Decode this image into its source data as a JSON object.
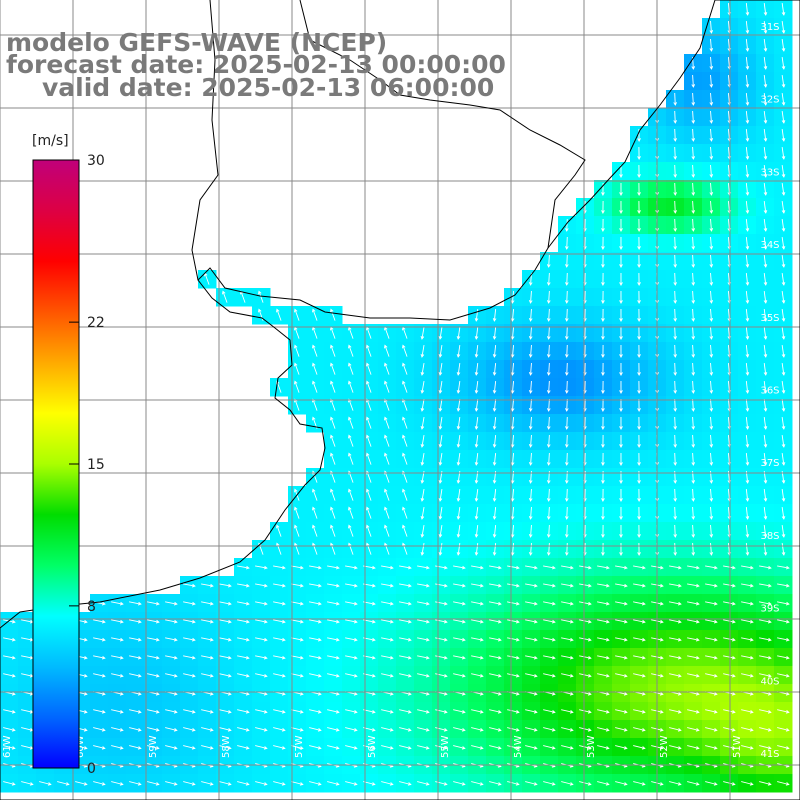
{
  "title": {
    "model": "modelo GEFS-WAVE (NCEP)",
    "forecast_date": "forecast date: 2025-02-13 00:00:00",
    "valid_date": "valid date: 2025-02-13 06:00:00"
  },
  "colorbar": {
    "unit": "[m/s]",
    "ticks": [
      "30",
      "22",
      "15",
      "8",
      "0"
    ],
    "tick_values": [
      30,
      22,
      15,
      8,
      0
    ],
    "range": [
      0,
      30
    ],
    "colors": [
      "#0000ff",
      "#0066ff",
      "#00bbff",
      "#00ffff",
      "#00ff66",
      "#00dd00",
      "#aaff00",
      "#ffff00",
      "#ffaa00",
      "#ff5500",
      "#ff0000",
      "#dd0044",
      "#c0007a"
    ]
  },
  "map": {
    "lat_labels": [
      "31S",
      "32S",
      "33S",
      "34S",
      "35S",
      "36S",
      "37S",
      "38S",
      "39S",
      "40S",
      "41S"
    ],
    "lon_labels": [
      "61W",
      "60W",
      "59W",
      "58W",
      "57W",
      "56W",
      "55W",
      "54W",
      "53W",
      "52W",
      "51W"
    ],
    "land_color": "#ffffff",
    "grid_color": "#888888"
  }
}
